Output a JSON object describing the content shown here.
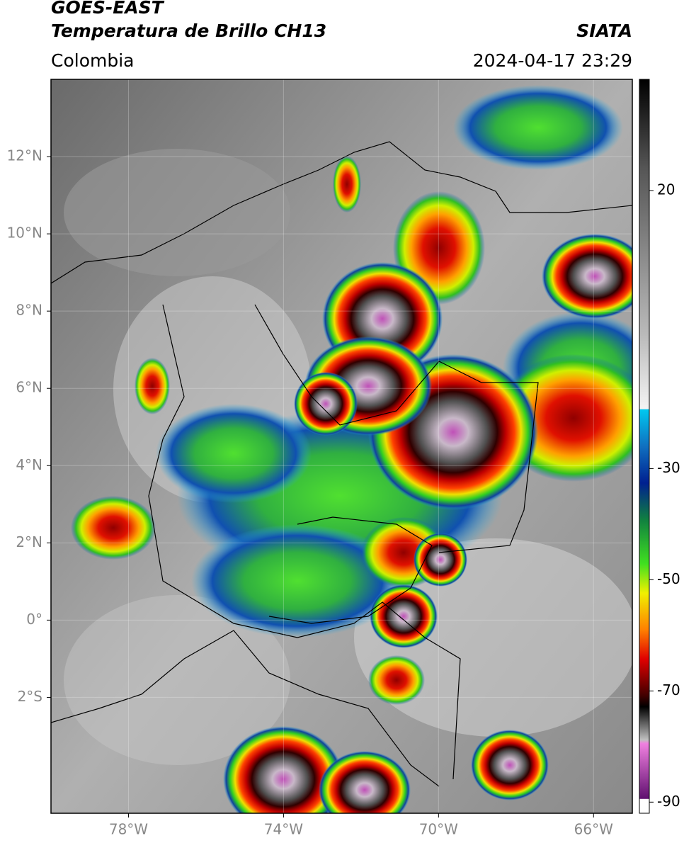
{
  "header": {
    "title": "GOES-EAST",
    "subtitle": "Temperatura de Brillo CH13",
    "region": "Colombia",
    "source": "SIATA",
    "datetime": "2024-04-17 23:29"
  },
  "map": {
    "xlim": [
      -80,
      -65
    ],
    "ylim": [
      -5,
      14
    ],
    "xticks": [
      {
        "value": -78,
        "label": "78°W"
      },
      {
        "value": -74,
        "label": "74°W"
      },
      {
        "value": -70,
        "label": "70°W"
      },
      {
        "value": -66,
        "label": "66°W"
      }
    ],
    "yticks": [
      {
        "value": 12,
        "label": "12°N"
      },
      {
        "value": 10,
        "label": "10°N"
      },
      {
        "value": 8,
        "label": "8°N"
      },
      {
        "value": 6,
        "label": "6°N"
      },
      {
        "value": 4,
        "label": "4°N"
      },
      {
        "value": 2,
        "label": "2°N"
      },
      {
        "value": 0,
        "label": "0°"
      },
      {
        "value": -2,
        "label": "2°S"
      }
    ],
    "grid": true
  },
  "colorbar": {
    "lim": [
      -92,
      40
    ],
    "ticks": [
      20,
      -30,
      -50,
      -70,
      -90
    ]
  }
}
